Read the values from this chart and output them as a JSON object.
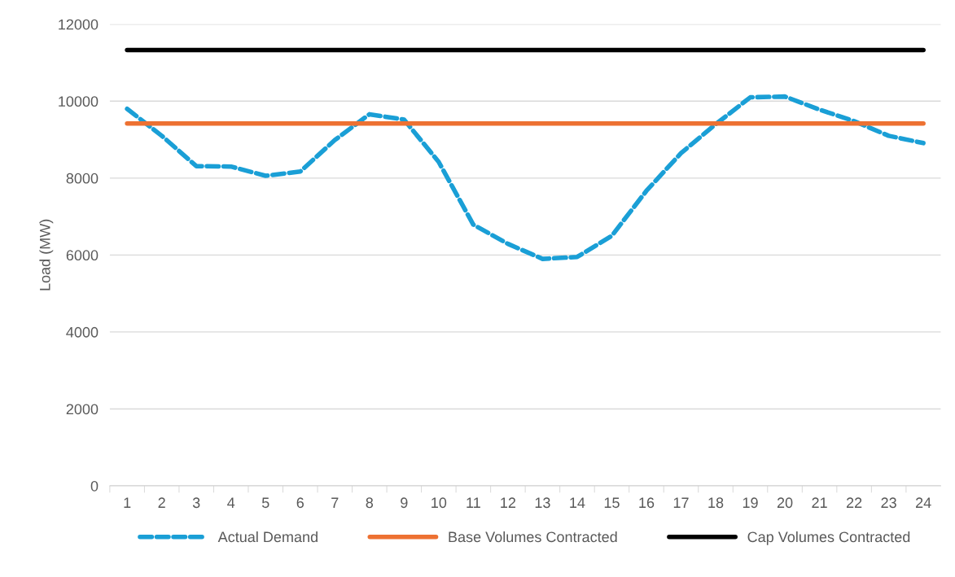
{
  "chart_data": {
    "type": "line",
    "ylabel": "Load (MW)",
    "categories": [
      "1",
      "2",
      "3",
      "4",
      "5",
      "6",
      "7",
      "8",
      "9",
      "10",
      "11",
      "12",
      "13",
      "14",
      "15",
      "16",
      "17",
      "18",
      "19",
      "20",
      "21",
      "22",
      "23",
      "24"
    ],
    "series": [
      {
        "name": "Actual Demand",
        "color": "#1a9fd6",
        "line_style": "dashed",
        "values": [
          9800,
          9100,
          8310,
          8300,
          8060,
          8170,
          8990,
          9660,
          9520,
          8420,
          6790,
          6290,
          5900,
          5950,
          6500,
          7670,
          8650,
          9400,
          10100,
          10120,
          9780,
          9480,
          9100,
          8910
        ]
      },
      {
        "name": "Base Volumes Contracted",
        "color": "#ed7132",
        "line_style": "solid",
        "values": [
          9420,
          9420,
          9420,
          9420,
          9420,
          9420,
          9420,
          9420,
          9420,
          9420,
          9420,
          9420,
          9420,
          9420,
          9420,
          9420,
          9420,
          9420,
          9420,
          9420,
          9420,
          9420,
          9420,
          9420
        ]
      },
      {
        "name": "Cap Volumes Contracted",
        "color": "#000000",
        "line_style": "solid",
        "values": [
          11330,
          11330,
          11330,
          11330,
          11330,
          11330,
          11330,
          11330,
          11330,
          11330,
          11330,
          11330,
          11330,
          11330,
          11330,
          11330,
          11330,
          11330,
          11330,
          11330,
          11330,
          11330,
          11330,
          11330
        ]
      }
    ],
    "ylim": [
      0,
      12000
    ],
    "yticks": [
      0,
      2000,
      4000,
      6000,
      8000,
      10000,
      12000
    ],
    "grid": "y",
    "legend": "bottom",
    "marker": "none"
  }
}
